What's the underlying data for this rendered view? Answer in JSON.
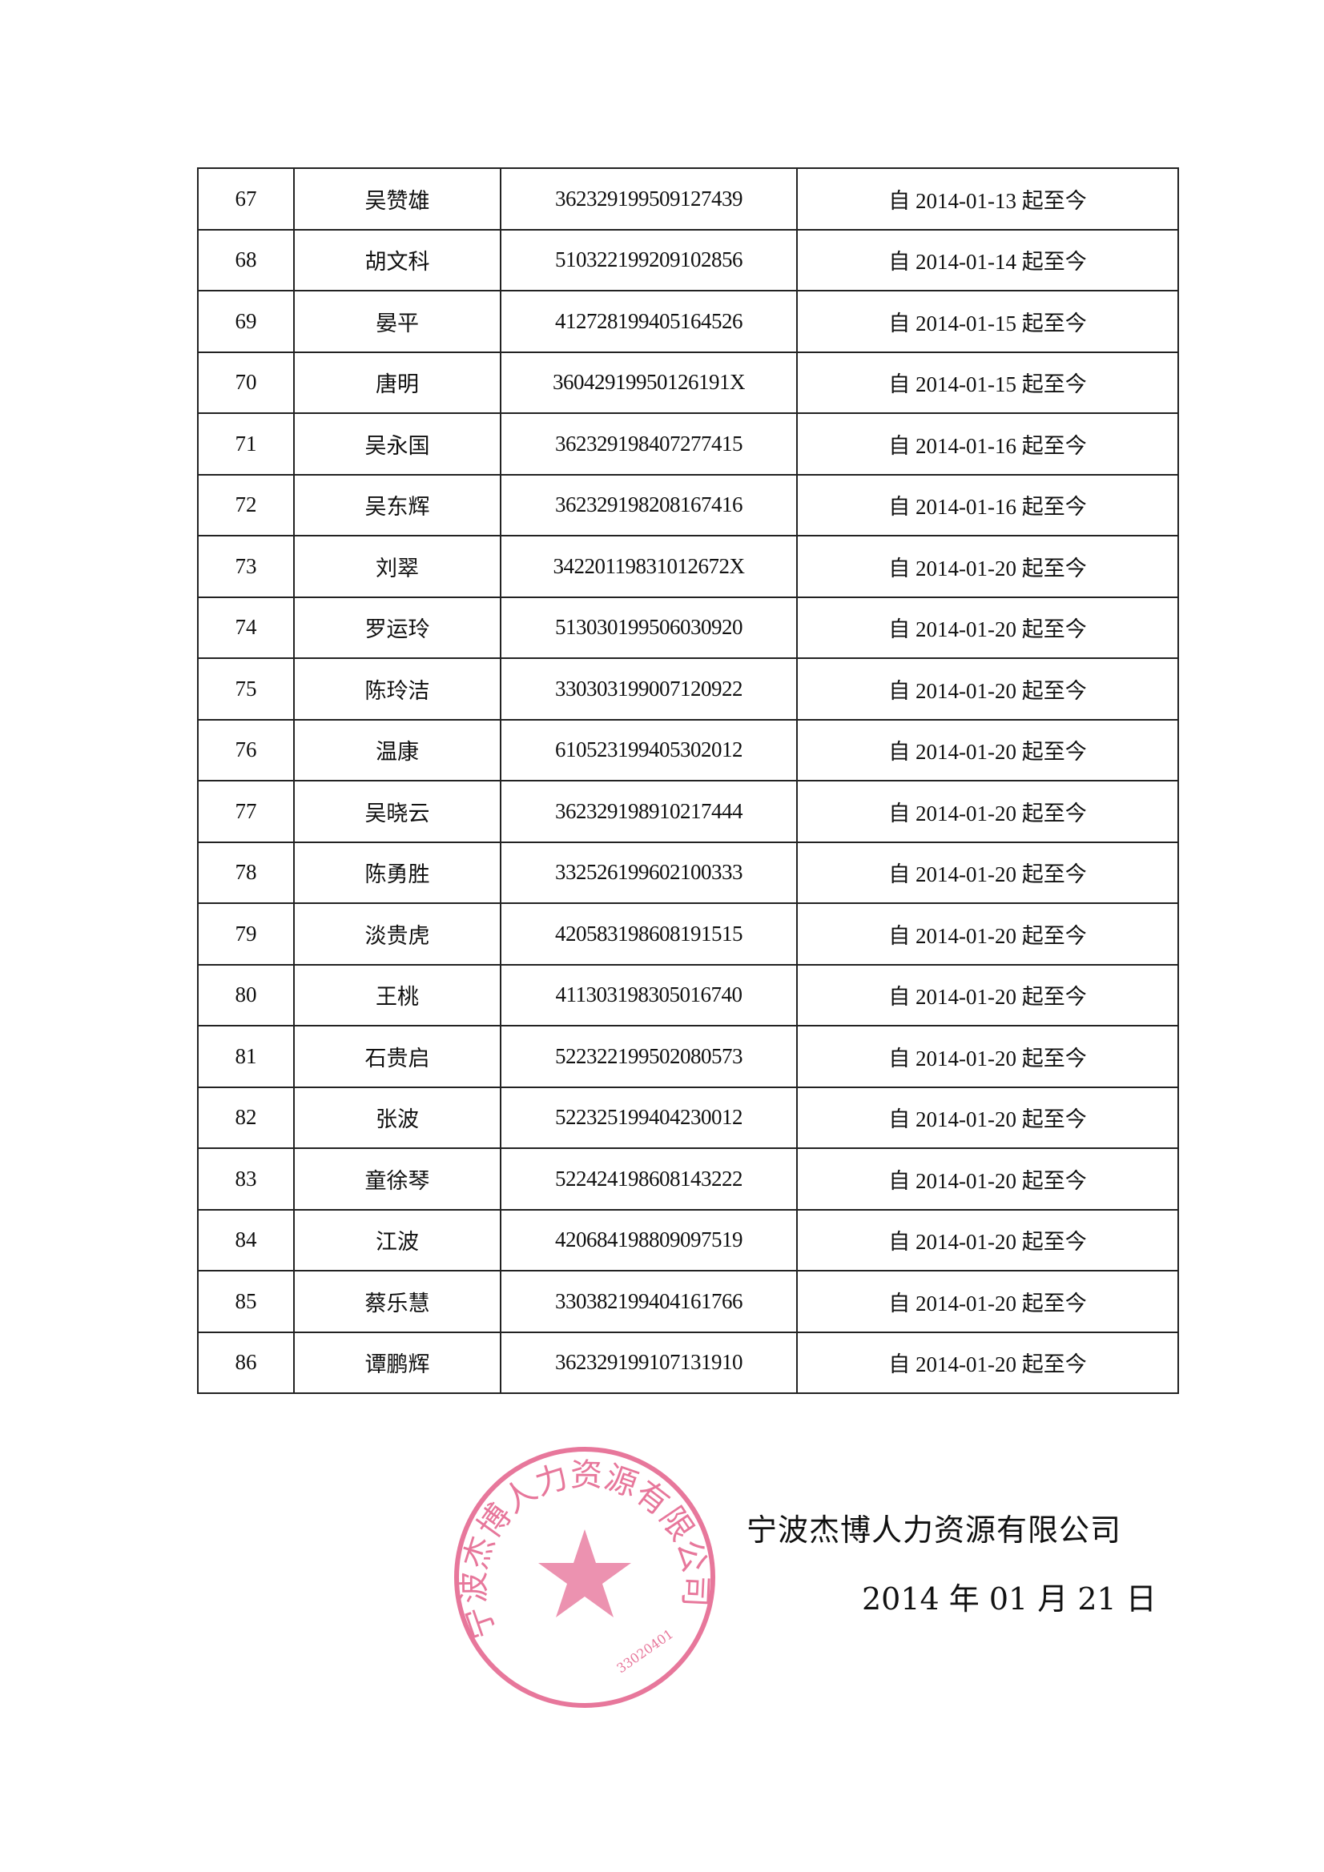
{
  "table": {
    "rows": [
      {
        "no": "67",
        "name": "吴赞雄",
        "id": "362329199509127439",
        "period": "自 2014-01-13 起至今"
      },
      {
        "no": "68",
        "name": "胡文科",
        "id": "510322199209102856",
        "period": "自 2014-01-14 起至今"
      },
      {
        "no": "69",
        "name": "晏平",
        "id": "412728199405164526",
        "period": "自 2014-01-15 起至今"
      },
      {
        "no": "70",
        "name": "唐明",
        "id": "36042919950126191X",
        "period": "自 2014-01-15 起至今"
      },
      {
        "no": "71",
        "name": "吴永国",
        "id": "362329198407277415",
        "period": "自 2014-01-16 起至今"
      },
      {
        "no": "72",
        "name": "吴东辉",
        "id": "362329198208167416",
        "period": "自 2014-01-16 起至今"
      },
      {
        "no": "73",
        "name": "刘翠",
        "id": "34220119831012672X",
        "period": "自 2014-01-20 起至今"
      },
      {
        "no": "74",
        "name": "罗运玲",
        "id": "513030199506030920",
        "period": "自 2014-01-20 起至今"
      },
      {
        "no": "75",
        "name": "陈玲洁",
        "id": "330303199007120922",
        "period": "自 2014-01-20 起至今"
      },
      {
        "no": "76",
        "name": "温康",
        "id": "610523199405302012",
        "period": "自 2014-01-20 起至今"
      },
      {
        "no": "77",
        "name": "吴晓云",
        "id": "362329198910217444",
        "period": "自 2014-01-20 起至今"
      },
      {
        "no": "78",
        "name": "陈勇胜",
        "id": "332526199602100333",
        "period": "自 2014-01-20 起至今"
      },
      {
        "no": "79",
        "name": "淡贵虎",
        "id": "420583198608191515",
        "period": "自 2014-01-20 起至今"
      },
      {
        "no": "80",
        "name": "王桃",
        "id": "411303198305016740",
        "period": "自 2014-01-20 起至今"
      },
      {
        "no": "81",
        "name": "石贵启",
        "id": "522322199502080573",
        "period": "自 2014-01-20 起至今"
      },
      {
        "no": "82",
        "name": "张波",
        "id": "522325199404230012",
        "period": "自 2014-01-20 起至今"
      },
      {
        "no": "83",
        "name": "童徐琴",
        "id": "522424198608143222",
        "period": "自 2014-01-20 起至今"
      },
      {
        "no": "84",
        "name": "江波",
        "id": "420684198809097519",
        "period": "自 2014-01-20 起至今"
      },
      {
        "no": "85",
        "name": "蔡乐慧",
        "id": "330382199404161766",
        "period": "自 2014-01-20 起至今"
      },
      {
        "no": "86",
        "name": "谭鹏辉",
        "id": "362329199107131910",
        "period": "自 2014-01-20 起至今"
      }
    ]
  },
  "signature": {
    "company": "宁波杰博人力资源有限公司",
    "date": "2014 年 01 月 21 日"
  },
  "stamp": {
    "text": "宁波杰博人力资源有限公司",
    "code": "33020401",
    "color": "#e04a7a",
    "icon": "star-icon"
  }
}
